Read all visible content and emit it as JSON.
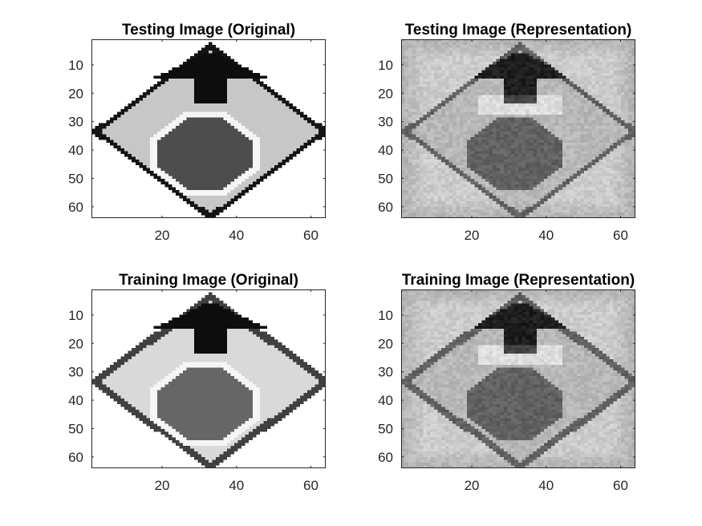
{
  "chart_data": [
    {
      "type": "heatmap",
      "title": "Testing Image (Original)",
      "variant": "original-test",
      "colormap": "gray",
      "image_size": [
        64,
        64
      ],
      "xlim": [
        1,
        64
      ],
      "ylim": [
        1,
        64
      ],
      "y_direction": "reverse",
      "xticks": [
        20,
        40,
        60
      ],
      "yticks": [
        10,
        20,
        30,
        40,
        50,
        60
      ]
    },
    {
      "type": "heatmap",
      "title": "Testing Image (Representation)",
      "variant": "representation-test",
      "colormap": "gray",
      "image_size": [
        64,
        64
      ],
      "xlim": [
        1,
        64
      ],
      "ylim": [
        1,
        64
      ],
      "y_direction": "reverse",
      "xticks": [
        20,
        40,
        60
      ],
      "yticks": [
        10,
        20,
        30,
        40,
        50,
        60
      ]
    },
    {
      "type": "heatmap",
      "title": "Training Image (Original)",
      "variant": "original-train",
      "colormap": "gray",
      "image_size": [
        64,
        64
      ],
      "xlim": [
        1,
        64
      ],
      "ylim": [
        1,
        64
      ],
      "y_direction": "reverse",
      "xticks": [
        20,
        40,
        60
      ],
      "yticks": [
        10,
        20,
        30,
        40,
        50,
        60
      ]
    },
    {
      "type": "heatmap",
      "title": "Training Image (Representation)",
      "variant": "representation-train",
      "colormap": "gray",
      "image_size": [
        64,
        64
      ],
      "xlim": [
        1,
        64
      ],
      "ylim": [
        1,
        64
      ],
      "y_direction": "reverse",
      "xticks": [
        20,
        40,
        60
      ],
      "yticks": [
        10,
        20,
        30,
        40,
        50,
        60
      ]
    }
  ],
  "colors": {
    "background": "#ffffff",
    "axes": "#262626"
  }
}
